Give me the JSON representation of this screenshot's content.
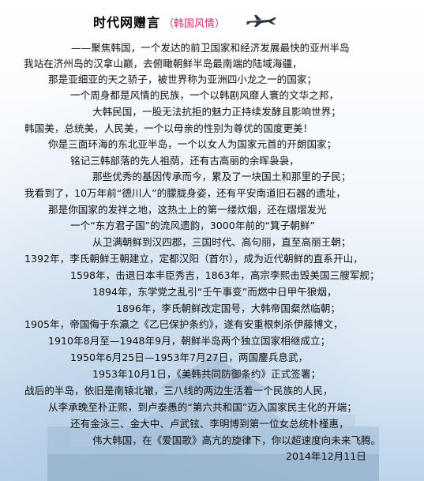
{
  "header": {
    "title": "时代网赠言",
    "subtitle": "（韩国风情）"
  },
  "icons": {
    "plane": "airplane-icon"
  },
  "poem_lines": [
    "——聚焦韩国，一个发达的前卫国家和经济发展最快的亚州半岛",
    "我站在济州岛的汉拿山巅，去俯瞰朝鲜半岛最南端的陆域海疆，",
    "那是亚细亚的天之骄子，被世界称为亚洲四小龙之一的国家；",
    "一个周身都是风情的民族，一个以韩剧风靡人寰的文华之邦，",
    "大韩民国，一股无法抗拒的魅力正持续发酵且影响世界；",
    "韩国美，总统美，人民美，一个以母亲的性别为尊优的国度更美！",
    "你是三面环海的东北亚半岛，一个以女人为国家元首的开朗国家；",
    "铭记三韩部落的先人祖荫，还有古高丽的余晖袅袅，",
    "那些优秀的基因传承而今，累及了一块国土和那里的子民；",
    "我看到了，10万年前“德川人”的朦胧身姿，还有平安南道旧石器的遗址，",
    "那是你国家的发祥之地，这热土上的第一缕炊烟，还在熠熠发光",
    "一个“东方君子国”的流风遗韵，3000年前的“箕子朝鲜”",
    "从卫满朝鲜到汉四郡，三国时代、高句丽，直至高丽王朝；",
    "1392年，李氏朝鲜王朝建立，定都汉阳（首尔），成为近代朝鲜的直系开山，",
    "1598年，击退日本丰臣秀吉，1863年，高宗李熙击毁美国三艘军舰；",
    "1894年，东学党之乱引“壬午事变”而燃中日甲午狼烟，",
    "1896年，李氏朝鲜改定国号，大韩帝国粲然临朝；",
    "1905年，帝国侮于东瀛之《乙巳保护条约》，遂有安重根刺杀伊藤博文，",
    "1910年8月至—1948年9月，朝鲜半岛两个独立国家相继成立；",
    "1950年6月25日—1953年7月27日，两国鏖兵息武，",
    "1953年10月1日，《美韩共同防御条约》正式签署；",
    "战后的半岛，依旧是南辕北辙，三八线的两边生活着一个民族的人民，",
    "从李承晚至朴正熙，到卢泰愚的“第六共和国”迈入国家民主化的开端；",
    "还有金泳三、金大中、卢武铉、李明博到第一位女总统朴槿惠，",
    "伟大韩国，在《爱国歌》高亢的旋律下，你以超速度向未来飞腾。"
  ],
  "date": "2014年12月11日"
}
